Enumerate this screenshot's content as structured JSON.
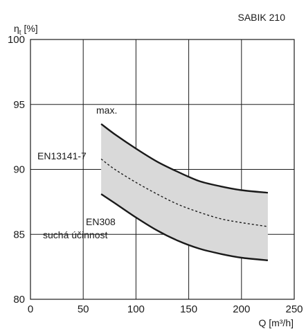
{
  "chart_data": {
    "type": "area",
    "title": "SABIK 210",
    "ylabel_main": "η",
    "ylabel_sub": "t",
    "ylabel_unit": " [%]",
    "xlabel": "Q [m³/h]",
    "xlim": [
      0,
      250
    ],
    "ylim": [
      80,
      100
    ],
    "x_ticks": [
      0,
      50,
      100,
      150,
      200,
      250
    ],
    "y_ticks": [
      80,
      85,
      90,
      95,
      100
    ],
    "x_tick_labels": [
      "0",
      "50",
      "100",
      "150",
      "200",
      "250"
    ],
    "y_tick_labels": [
      "80",
      "85",
      "90",
      "95",
      "100"
    ],
    "grid": true,
    "band_color": "#d9d9d9",
    "series": [
      {
        "name": "max.",
        "style": "solid",
        "x": [
          67,
          80,
          100,
          120,
          140,
          160,
          180,
          200,
          225
        ],
        "y": [
          93.5,
          92.7,
          91.6,
          90.6,
          89.8,
          89.1,
          88.7,
          88.4,
          88.2
        ]
      },
      {
        "name": "EN13141-7",
        "style": "dashed",
        "x": [
          67,
          80,
          100,
          120,
          140,
          160,
          180,
          200,
          225
        ],
        "y": [
          90.8,
          90.0,
          89.0,
          88.1,
          87.3,
          86.7,
          86.2,
          85.9,
          85.6
        ]
      },
      {
        "name_line1": "EN308",
        "name_line2": "suchá účinnost",
        "style": "solid",
        "x": [
          67,
          80,
          100,
          120,
          140,
          160,
          180,
          200,
          225
        ],
        "y": [
          88.1,
          87.4,
          86.3,
          85.3,
          84.5,
          83.9,
          83.5,
          83.2,
          83.0
        ]
      }
    ]
  }
}
